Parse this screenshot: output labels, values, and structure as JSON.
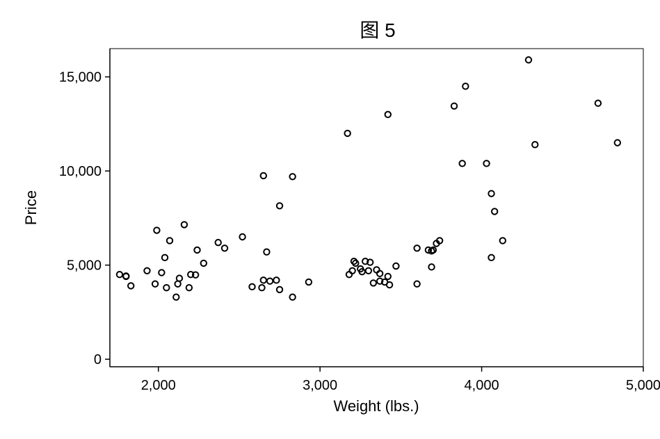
{
  "chart_data": {
    "type": "scatter",
    "title": "图 5",
    "xlabel": "Weight (lbs.)",
    "ylabel": "Price",
    "xlim": [
      1700,
      5000
    ],
    "ylim": [
      -400,
      16500
    ],
    "xticks": [
      2000,
      3000,
      4000,
      5000
    ],
    "xtick_labels": [
      "2,000",
      "3,000",
      "4,000",
      "5,000"
    ],
    "yticks": [
      0,
      5000,
      10000,
      15000
    ],
    "ytick_labels": [
      "0",
      "5,000",
      "10,000",
      "15,000"
    ],
    "grid": false,
    "points": [
      {
        "x": 1760,
        "y": 4500
      },
      {
        "x": 1800,
        "y": 4400
      },
      {
        "x": 1800,
        "y": 4420
      },
      {
        "x": 1830,
        "y": 3900
      },
      {
        "x": 1930,
        "y": 4700
      },
      {
        "x": 1980,
        "y": 4000
      },
      {
        "x": 1990,
        "y": 6850
      },
      {
        "x": 2020,
        "y": 4600
      },
      {
        "x": 2040,
        "y": 5400
      },
      {
        "x": 2050,
        "y": 3800
      },
      {
        "x": 2070,
        "y": 6300
      },
      {
        "x": 2110,
        "y": 3300
      },
      {
        "x": 2120,
        "y": 4000
      },
      {
        "x": 2130,
        "y": 4300
      },
      {
        "x": 2160,
        "y": 7150
      },
      {
        "x": 2190,
        "y": 3800
      },
      {
        "x": 2200,
        "y": 4500
      },
      {
        "x": 2230,
        "y": 4480
      },
      {
        "x": 2240,
        "y": 5800
      },
      {
        "x": 2280,
        "y": 5100
      },
      {
        "x": 2370,
        "y": 6200
      },
      {
        "x": 2410,
        "y": 5900
      },
      {
        "x": 2520,
        "y": 6500
      },
      {
        "x": 2580,
        "y": 3850
      },
      {
        "x": 2640,
        "y": 3800
      },
      {
        "x": 2650,
        "y": 4200
      },
      {
        "x": 2650,
        "y": 9750
      },
      {
        "x": 2670,
        "y": 5700
      },
      {
        "x": 2690,
        "y": 4150
      },
      {
        "x": 2730,
        "y": 4200
      },
      {
        "x": 2750,
        "y": 3700
      },
      {
        "x": 2750,
        "y": 8150
      },
      {
        "x": 2830,
        "y": 9700
      },
      {
        "x": 2830,
        "y": 3300
      },
      {
        "x": 2930,
        "y": 4100
      },
      {
        "x": 3170,
        "y": 12000
      },
      {
        "x": 3180,
        "y": 4500
      },
      {
        "x": 3200,
        "y": 4700
      },
      {
        "x": 3210,
        "y": 5200
      },
      {
        "x": 3220,
        "y": 5100
      },
      {
        "x": 3250,
        "y": 4800
      },
      {
        "x": 3260,
        "y": 4650
      },
      {
        "x": 3280,
        "y": 5200
      },
      {
        "x": 3300,
        "y": 4700
      },
      {
        "x": 3310,
        "y": 5150
      },
      {
        "x": 3330,
        "y": 4050
      },
      {
        "x": 3350,
        "y": 4750
      },
      {
        "x": 3370,
        "y": 4150
      },
      {
        "x": 3370,
        "y": 4550
      },
      {
        "x": 3400,
        "y": 4100
      },
      {
        "x": 3420,
        "y": 4400
      },
      {
        "x": 3420,
        "y": 13000
      },
      {
        "x": 3430,
        "y": 3950
      },
      {
        "x": 3470,
        "y": 4950
      },
      {
        "x": 3600,
        "y": 5900
      },
      {
        "x": 3600,
        "y": 4000
      },
      {
        "x": 3670,
        "y": 5800
      },
      {
        "x": 3690,
        "y": 5750
      },
      {
        "x": 3690,
        "y": 4900
      },
      {
        "x": 3700,
        "y": 5800
      },
      {
        "x": 3720,
        "y": 6150
      },
      {
        "x": 3740,
        "y": 6300
      },
      {
        "x": 3830,
        "y": 13450
      },
      {
        "x": 3880,
        "y": 10400
      },
      {
        "x": 3900,
        "y": 14500
      },
      {
        "x": 4030,
        "y": 10400
      },
      {
        "x": 4060,
        "y": 8800
      },
      {
        "x": 4060,
        "y": 5400
      },
      {
        "x": 4080,
        "y": 7850
      },
      {
        "x": 4130,
        "y": 6300
      },
      {
        "x": 4290,
        "y": 15900
      },
      {
        "x": 4330,
        "y": 11400
      },
      {
        "x": 4720,
        "y": 13600
      },
      {
        "x": 4840,
        "y": 11500
      }
    ]
  }
}
